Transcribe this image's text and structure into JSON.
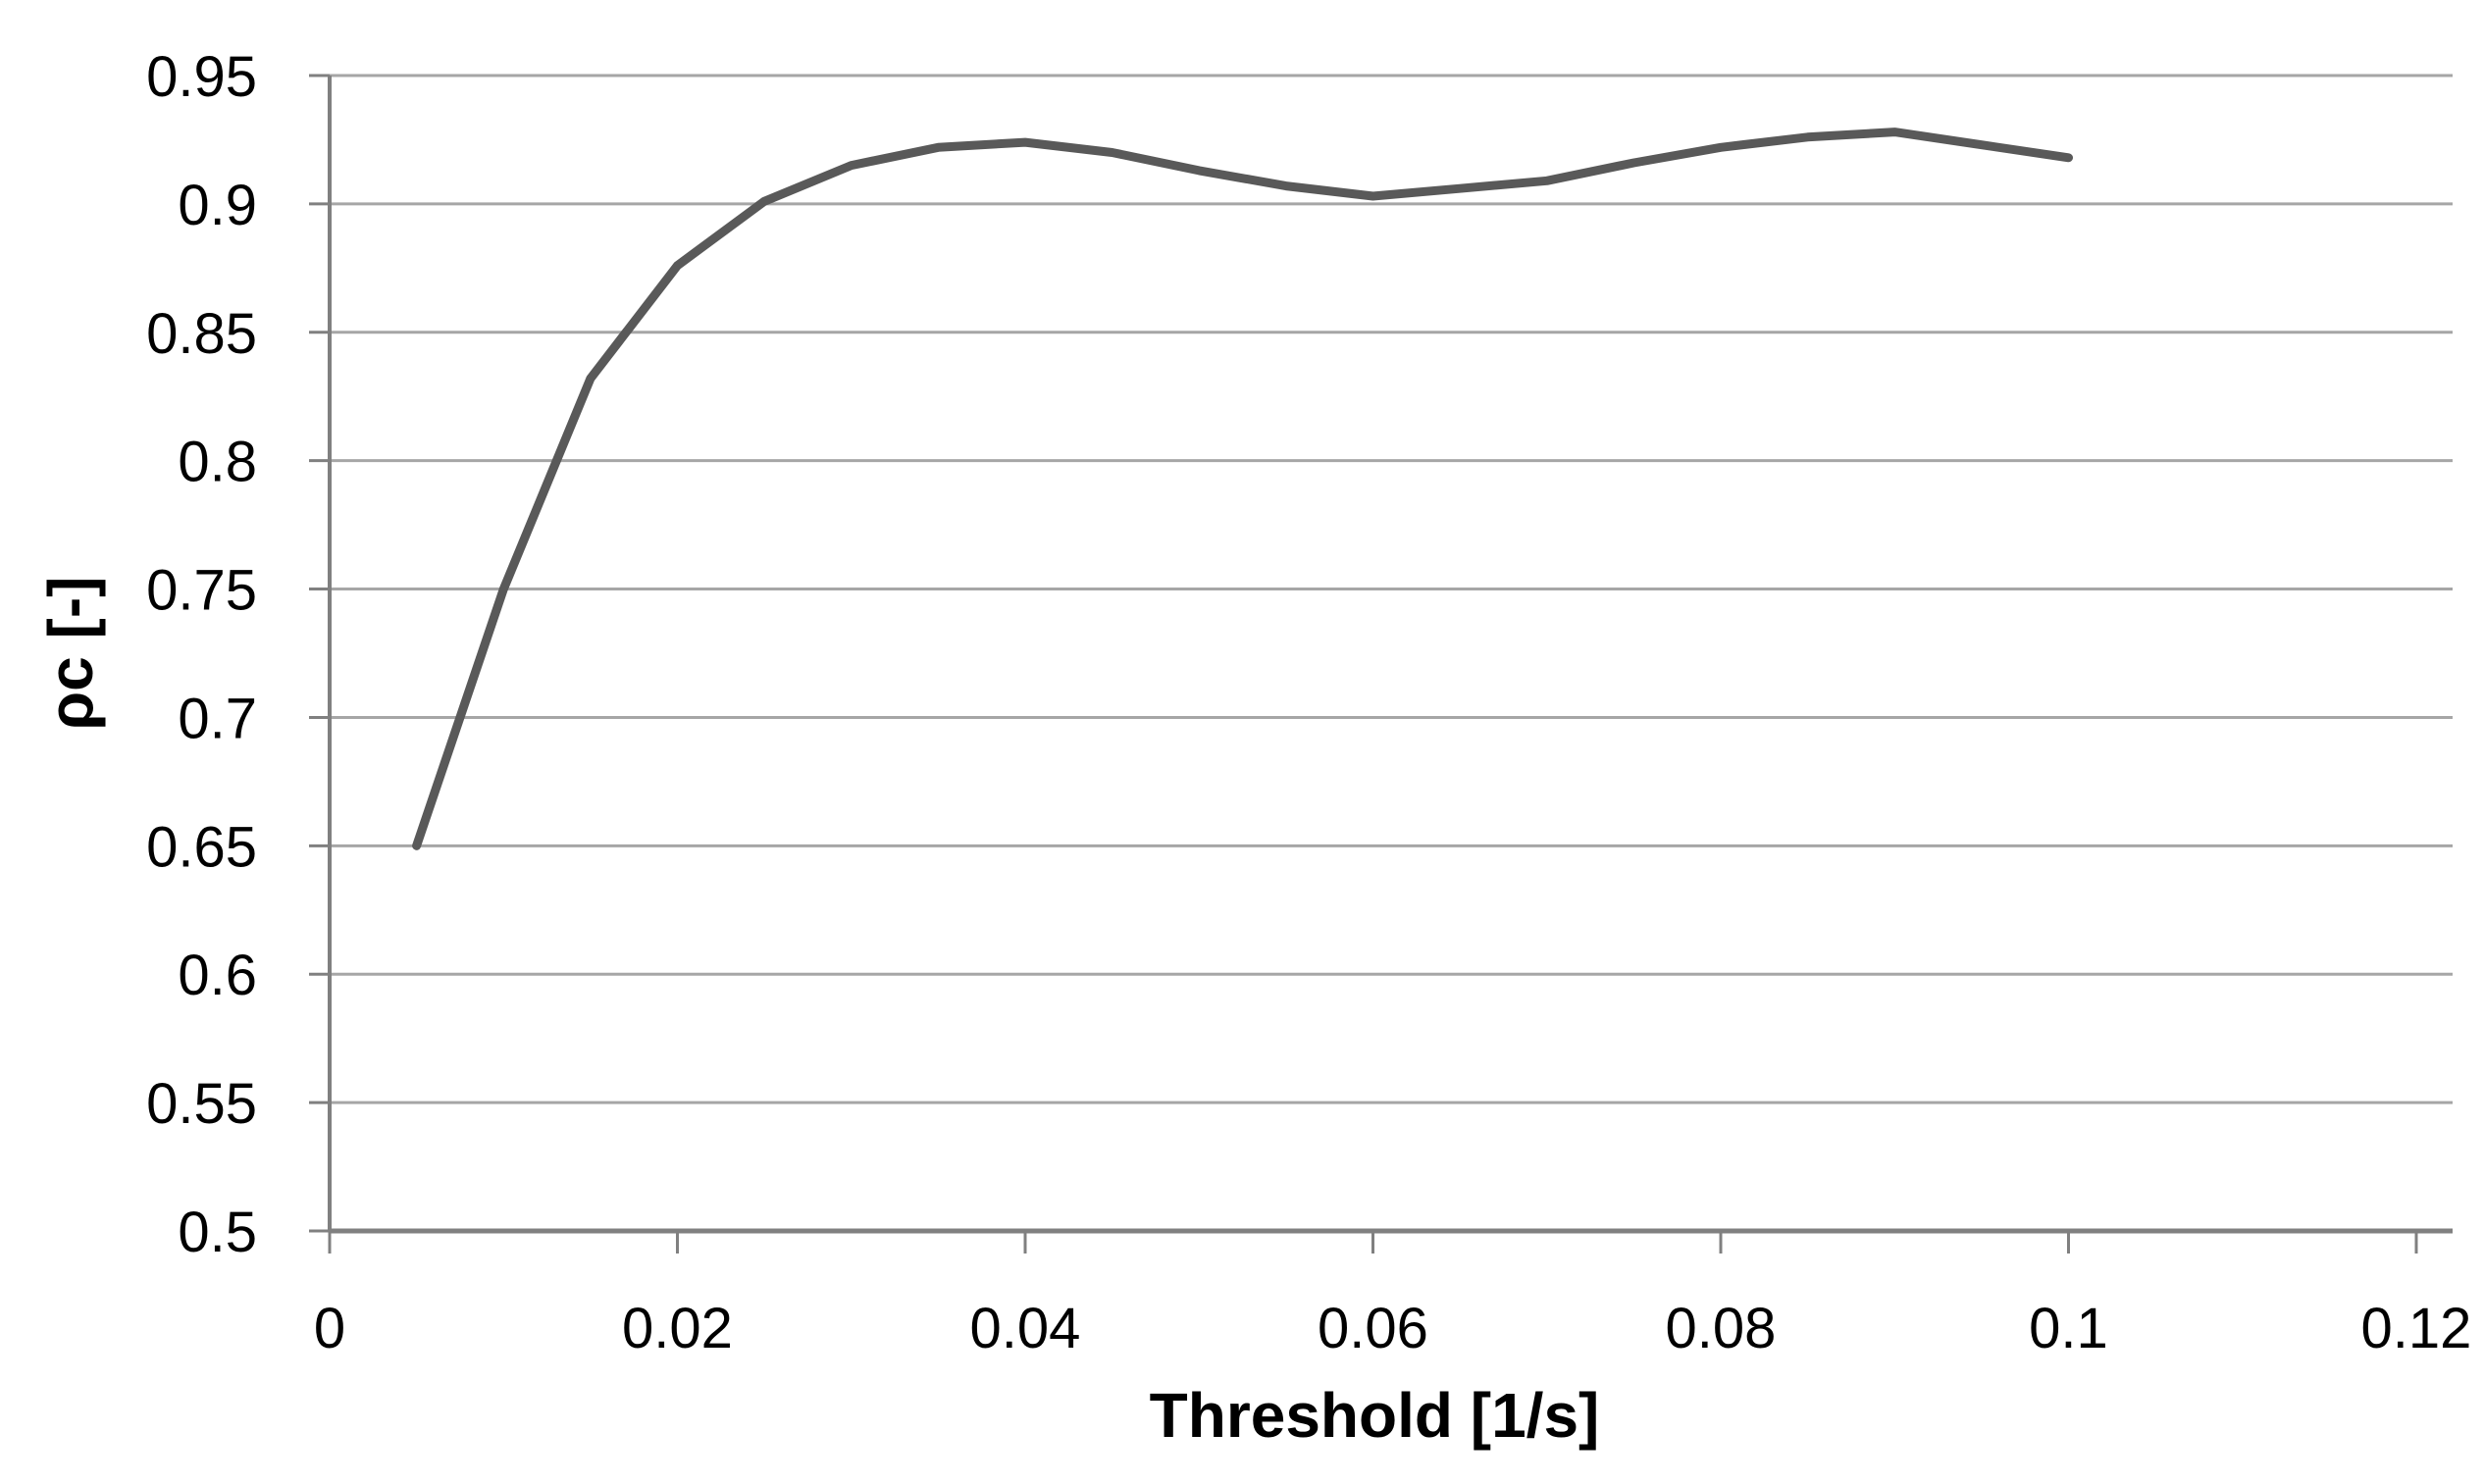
{
  "chart_data": {
    "type": "line",
    "title": "",
    "xlabel": "Threshold [1/s]",
    "ylabel": "ρc [-]",
    "x": [
      0.005,
      0.01,
      0.015,
      0.02,
      0.025,
      0.03,
      0.035,
      0.04,
      0.045,
      0.05,
      0.055,
      0.06,
      0.065,
      0.07,
      0.075,
      0.08,
      0.085,
      0.09,
      0.095,
      0.1
    ],
    "y": [
      0.65,
      0.75,
      0.832,
      0.876,
      0.901,
      0.915,
      0.922,
      0.924,
      0.92,
      0.913,
      0.907,
      0.903,
      0.906,
      0.909,
      0.916,
      0.922,
      0.926,
      0.928,
      0.923,
      0.918
    ],
    "xlim": [
      0,
      0.12
    ],
    "ylim": [
      0.5,
      0.95
    ],
    "x_ticks": [
      0,
      0.02,
      0.04,
      0.06,
      0.08,
      0.1,
      0.12
    ],
    "x_tick_labels": [
      "0",
      "0.02",
      "0.04",
      "0.06",
      "0.08",
      "0.1",
      "0.12"
    ],
    "y_ticks": [
      0.95,
      0.9,
      0.85,
      0.8,
      0.75,
      0.7,
      0.65,
      0.6,
      0.55,
      0.5
    ],
    "y_tick_labels": [
      "0.95",
      "0.9",
      "0.85",
      "0.8",
      "0.75",
      "0.7",
      "0.65",
      "0.6",
      "0.55",
      "0.5"
    ],
    "grid": "horizontal-only",
    "legend": "none",
    "line_color": "#595959",
    "gridline_color": "#a6a6a6",
    "axis_color": "#808080",
    "text_color": "#000000",
    "background_color": "#ffffff"
  }
}
